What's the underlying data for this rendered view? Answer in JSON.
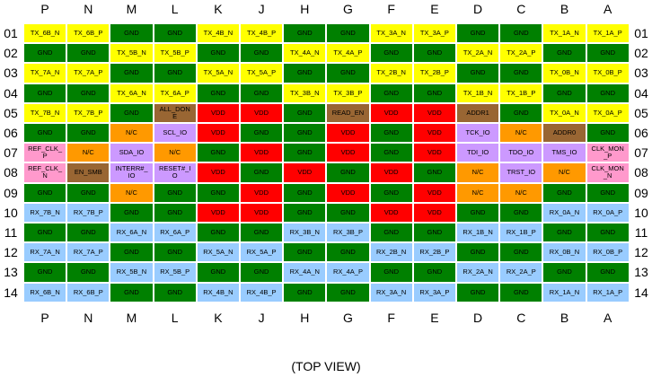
{
  "columns": [
    "P",
    "N",
    "M",
    "L",
    "K",
    "J",
    "H",
    "G",
    "F",
    "E",
    "D",
    "C",
    "B",
    "A"
  ],
  "row_labels": [
    "01",
    "02",
    "03",
    "04",
    "05",
    "06",
    "07",
    "08",
    "09",
    "10",
    "11",
    "12",
    "13",
    "14"
  ],
  "footer": "(TOP VIEW)",
  "rows": [
    [
      {
        "label": "TX_6B_N",
        "color": "#ffff00"
      },
      {
        "label": "TX_6B_P",
        "color": "#ffff00"
      },
      {
        "label": "GND",
        "color": "#008000"
      },
      {
        "label": "GND",
        "color": "#008000"
      },
      {
        "label": "TX_4B_N",
        "color": "#ffff00"
      },
      {
        "label": "TX_4B_P",
        "color": "#ffff00"
      },
      {
        "label": "GND",
        "color": "#008000"
      },
      {
        "label": "GND",
        "color": "#008000"
      },
      {
        "label": "TX_3A_N",
        "color": "#ffff00"
      },
      {
        "label": "TX_3A_P",
        "color": "#ffff00"
      },
      {
        "label": "GND",
        "color": "#008000"
      },
      {
        "label": "GND",
        "color": "#008000"
      },
      {
        "label": "TX_1A_N",
        "color": "#ffff00"
      },
      {
        "label": "TX_1A_P",
        "color": "#ffff00"
      }
    ],
    [
      {
        "label": "GND",
        "color": "#008000"
      },
      {
        "label": "GND",
        "color": "#008000"
      },
      {
        "label": "TX_5B_N",
        "color": "#ffff00"
      },
      {
        "label": "TX_5B_P",
        "color": "#ffff00"
      },
      {
        "label": "GND",
        "color": "#008000"
      },
      {
        "label": "GND",
        "color": "#008000"
      },
      {
        "label": "TX_4A_N",
        "color": "#ffff00"
      },
      {
        "label": "TX_4A_P",
        "color": "#ffff00"
      },
      {
        "label": "GND",
        "color": "#008000"
      },
      {
        "label": "GND",
        "color": "#008000"
      },
      {
        "label": "TX_2A_N",
        "color": "#ffff00"
      },
      {
        "label": "TX_2A_P",
        "color": "#ffff00"
      },
      {
        "label": "GND",
        "color": "#008000"
      },
      {
        "label": "GND",
        "color": "#008000"
      }
    ],
    [
      {
        "label": "TX_7A_N",
        "color": "#ffff00"
      },
      {
        "label": "TX_7A_P",
        "color": "#ffff00"
      },
      {
        "label": "GND",
        "color": "#008000"
      },
      {
        "label": "GND",
        "color": "#008000"
      },
      {
        "label": "TX_5A_N",
        "color": "#ffff00"
      },
      {
        "label": "TX_5A_P",
        "color": "#ffff00"
      },
      {
        "label": "GND",
        "color": "#008000"
      },
      {
        "label": "GND",
        "color": "#008000"
      },
      {
        "label": "TX_2B_N",
        "color": "#ffff00"
      },
      {
        "label": "TX_2B_P",
        "color": "#ffff00"
      },
      {
        "label": "GND",
        "color": "#008000"
      },
      {
        "label": "GND",
        "color": "#008000"
      },
      {
        "label": "TX_0B_N",
        "color": "#ffff00"
      },
      {
        "label": "TX_0B_P",
        "color": "#ffff00"
      }
    ],
    [
      {
        "label": "GND",
        "color": "#008000"
      },
      {
        "label": "GND",
        "color": "#008000"
      },
      {
        "label": "TX_6A_N",
        "color": "#ffff00"
      },
      {
        "label": "TX_6A_P",
        "color": "#ffff00"
      },
      {
        "label": "GND",
        "color": "#008000"
      },
      {
        "label": "GND",
        "color": "#008000"
      },
      {
        "label": "TX_3B_N",
        "color": "#ffff00"
      },
      {
        "label": "TX_3B_P",
        "color": "#ffff00"
      },
      {
        "label": "GND",
        "color": "#008000"
      },
      {
        "label": "GND",
        "color": "#008000"
      },
      {
        "label": "TX_1B_N",
        "color": "#ffff00"
      },
      {
        "label": "TX_1B_P",
        "color": "#ffff00"
      },
      {
        "label": "GND",
        "color": "#008000"
      },
      {
        "label": "GND",
        "color": "#008000"
      }
    ],
    [
      {
        "label": "TX_7B_N",
        "color": "#ffff00"
      },
      {
        "label": "TX_7B_P",
        "color": "#ffff00"
      },
      {
        "label": "GND",
        "color": "#008000"
      },
      {
        "label": "ALL_DONE",
        "color": "#996633"
      },
      {
        "label": "VDD",
        "color": "#ff0000"
      },
      {
        "label": "VDD",
        "color": "#ff0000"
      },
      {
        "label": "GND",
        "color": "#008000"
      },
      {
        "label": "READ_EN",
        "color": "#996633"
      },
      {
        "label": "VDD",
        "color": "#ff0000"
      },
      {
        "label": "VDD",
        "color": "#ff0000"
      },
      {
        "label": "ADDR1",
        "color": "#996633"
      },
      {
        "label": "GND",
        "color": "#008000"
      },
      {
        "label": "TX_0A_N",
        "color": "#ffff00"
      },
      {
        "label": "TX_0A_P",
        "color": "#ffff00"
      }
    ],
    [
      {
        "label": "GND",
        "color": "#008000"
      },
      {
        "label": "GND",
        "color": "#008000"
      },
      {
        "label": "N/C",
        "color": "#ff9900"
      },
      {
        "label": "SCL_IO",
        "color": "#cc99ff"
      },
      {
        "label": "VDD",
        "color": "#ff0000"
      },
      {
        "label": "GND",
        "color": "#008000"
      },
      {
        "label": "GND",
        "color": "#008000"
      },
      {
        "label": "VDD",
        "color": "#ff0000"
      },
      {
        "label": "GND",
        "color": "#008000"
      },
      {
        "label": "VDD",
        "color": "#ff0000"
      },
      {
        "label": "TCK_IO",
        "color": "#cc99ff"
      },
      {
        "label": "N/C",
        "color": "#ff9900"
      },
      {
        "label": "ADDR0",
        "color": "#996633"
      },
      {
        "label": "GND",
        "color": "#008000"
      }
    ],
    [
      {
        "label": "REF_CLK_P",
        "color": "#ff99cc"
      },
      {
        "label": "N/C",
        "color": "#ff9900"
      },
      {
        "label": "SDA_IO",
        "color": "#cc99ff"
      },
      {
        "label": "N/C",
        "color": "#ff9900"
      },
      {
        "label": "GND",
        "color": "#008000"
      },
      {
        "label": "VDD",
        "color": "#ff0000"
      },
      {
        "label": "GND",
        "color": "#008000"
      },
      {
        "label": "VDD",
        "color": "#ff0000"
      },
      {
        "label": "GND",
        "color": "#008000"
      },
      {
        "label": "VDD",
        "color": "#ff0000"
      },
      {
        "label": "TDI_IO",
        "color": "#cc99ff"
      },
      {
        "label": "TDO_IO",
        "color": "#cc99ff"
      },
      {
        "label": "TMS_IO",
        "color": "#cc99ff"
      },
      {
        "label": "CLK_MON_P",
        "color": "#ff99cc"
      }
    ],
    [
      {
        "label": "REF_CLK_N",
        "color": "#ff99cc"
      },
      {
        "label": "EN_SMB",
        "color": "#996633"
      },
      {
        "label": "INTERR#_IO",
        "color": "#cc99ff"
      },
      {
        "label": "RESET#_IO",
        "color": "#cc99ff"
      },
      {
        "label": "VDD",
        "color": "#ff0000"
      },
      {
        "label": "GND",
        "color": "#008000"
      },
      {
        "label": "VDD",
        "color": "#ff0000"
      },
      {
        "label": "GND",
        "color": "#008000"
      },
      {
        "label": "VDD",
        "color": "#ff0000"
      },
      {
        "label": "GND",
        "color": "#008000"
      },
      {
        "label": "N/C",
        "color": "#ff9900"
      },
      {
        "label": "TRST_IO",
        "color": "#cc99ff"
      },
      {
        "label": "N/C",
        "color": "#ff9900"
      },
      {
        "label": "CLK_MON_N",
        "color": "#ff99cc"
      }
    ],
    [
      {
        "label": "GND",
        "color": "#008000"
      },
      {
        "label": "GND",
        "color": "#008000"
      },
      {
        "label": "N/C",
        "color": "#ff9900"
      },
      {
        "label": "GND",
        "color": "#008000"
      },
      {
        "label": "GND",
        "color": "#008000"
      },
      {
        "label": "VDD",
        "color": "#ff0000"
      },
      {
        "label": "GND",
        "color": "#008000"
      },
      {
        "label": "VDD",
        "color": "#ff0000"
      },
      {
        "label": "GND",
        "color": "#008000"
      },
      {
        "label": "VDD",
        "color": "#ff0000"
      },
      {
        "label": "N/C",
        "color": "#ff9900"
      },
      {
        "label": "N/C",
        "color": "#ff9900"
      },
      {
        "label": "GND",
        "color": "#008000"
      },
      {
        "label": "GND",
        "color": "#008000"
      }
    ],
    [
      {
        "label": "RX_7B_N",
        "color": "#99ccff"
      },
      {
        "label": "RX_7B_P",
        "color": "#99ccff"
      },
      {
        "label": "GND",
        "color": "#008000"
      },
      {
        "label": "GND",
        "color": "#008000"
      },
      {
        "label": "VDD",
        "color": "#ff0000"
      },
      {
        "label": "VDD",
        "color": "#ff0000"
      },
      {
        "label": "GND",
        "color": "#008000"
      },
      {
        "label": "GND",
        "color": "#008000"
      },
      {
        "label": "VDD",
        "color": "#ff0000"
      },
      {
        "label": "VDD",
        "color": "#ff0000"
      },
      {
        "label": "GND",
        "color": "#008000"
      },
      {
        "label": "GND",
        "color": "#008000"
      },
      {
        "label": "RX_0A_N",
        "color": "#99ccff"
      },
      {
        "label": "RX_0A_P",
        "color": "#99ccff"
      }
    ],
    [
      {
        "label": "GND",
        "color": "#008000"
      },
      {
        "label": "GND",
        "color": "#008000"
      },
      {
        "label": "RX_6A_N",
        "color": "#99ccff"
      },
      {
        "label": "RX_6A_P",
        "color": "#99ccff"
      },
      {
        "label": "GND",
        "color": "#008000"
      },
      {
        "label": "GND",
        "color": "#008000"
      },
      {
        "label": "RX_3B_N",
        "color": "#99ccff"
      },
      {
        "label": "RX_3B_P",
        "color": "#99ccff"
      },
      {
        "label": "GND",
        "color": "#008000"
      },
      {
        "label": "GND",
        "color": "#008000"
      },
      {
        "label": "RX_1B_N",
        "color": "#99ccff"
      },
      {
        "label": "RX_1B_P",
        "color": "#99ccff"
      },
      {
        "label": "GND",
        "color": "#008000"
      },
      {
        "label": "GND",
        "color": "#008000"
      }
    ],
    [
      {
        "label": "RX_7A_N",
        "color": "#99ccff"
      },
      {
        "label": "RX_7A_P",
        "color": "#99ccff"
      },
      {
        "label": "GND",
        "color": "#008000"
      },
      {
        "label": "GND",
        "color": "#008000"
      },
      {
        "label": "RX_5A_N",
        "color": "#99ccff"
      },
      {
        "label": "RX_5A_P",
        "color": "#99ccff"
      },
      {
        "label": "GND",
        "color": "#008000"
      },
      {
        "label": "GND",
        "color": "#008000"
      },
      {
        "label": "RX_2B_N",
        "color": "#99ccff"
      },
      {
        "label": "RX_2B_P",
        "color": "#99ccff"
      },
      {
        "label": "GND",
        "color": "#008000"
      },
      {
        "label": "GND",
        "color": "#008000"
      },
      {
        "label": "RX_0B_N",
        "color": "#99ccff"
      },
      {
        "label": "RX_0B_P",
        "color": "#99ccff"
      }
    ],
    [
      {
        "label": "GND",
        "color": "#008000"
      },
      {
        "label": "GND",
        "color": "#008000"
      },
      {
        "label": "RX_5B_N",
        "color": "#99ccff"
      },
      {
        "label": "RX_5B_P",
        "color": "#99ccff"
      },
      {
        "label": "GND",
        "color": "#008000"
      },
      {
        "label": "GND",
        "color": "#008000"
      },
      {
        "label": "RX_4A_N",
        "color": "#99ccff"
      },
      {
        "label": "RX_4A_P",
        "color": "#99ccff"
      },
      {
        "label": "GND",
        "color": "#008000"
      },
      {
        "label": "GND",
        "color": "#008000"
      },
      {
        "label": "RX_2A_N",
        "color": "#99ccff"
      },
      {
        "label": "RX_2A_P",
        "color": "#99ccff"
      },
      {
        "label": "GND",
        "color": "#008000"
      },
      {
        "label": "GND",
        "color": "#008000"
      }
    ],
    [
      {
        "label": "RX_6B_N",
        "color": "#99ccff"
      },
      {
        "label": "RX_6B_P",
        "color": "#99ccff"
      },
      {
        "label": "GND",
        "color": "#008000"
      },
      {
        "label": "GND",
        "color": "#008000"
      },
      {
        "label": "RX_4B_N",
        "color": "#99ccff"
      },
      {
        "label": "RX_4B_P",
        "color": "#99ccff"
      },
      {
        "label": "GND",
        "color": "#008000"
      },
      {
        "label": "GND",
        "color": "#008000"
      },
      {
        "label": "RX_3A_N",
        "color": "#99ccff"
      },
      {
        "label": "RX_3A_P",
        "color": "#99ccff"
      },
      {
        "label": "GND",
        "color": "#008000"
      },
      {
        "label": "GND",
        "color": "#008000"
      },
      {
        "label": "RX_1A_N",
        "color": "#99ccff"
      },
      {
        "label": "RX_1A_P",
        "color": "#99ccff"
      }
    ]
  ]
}
